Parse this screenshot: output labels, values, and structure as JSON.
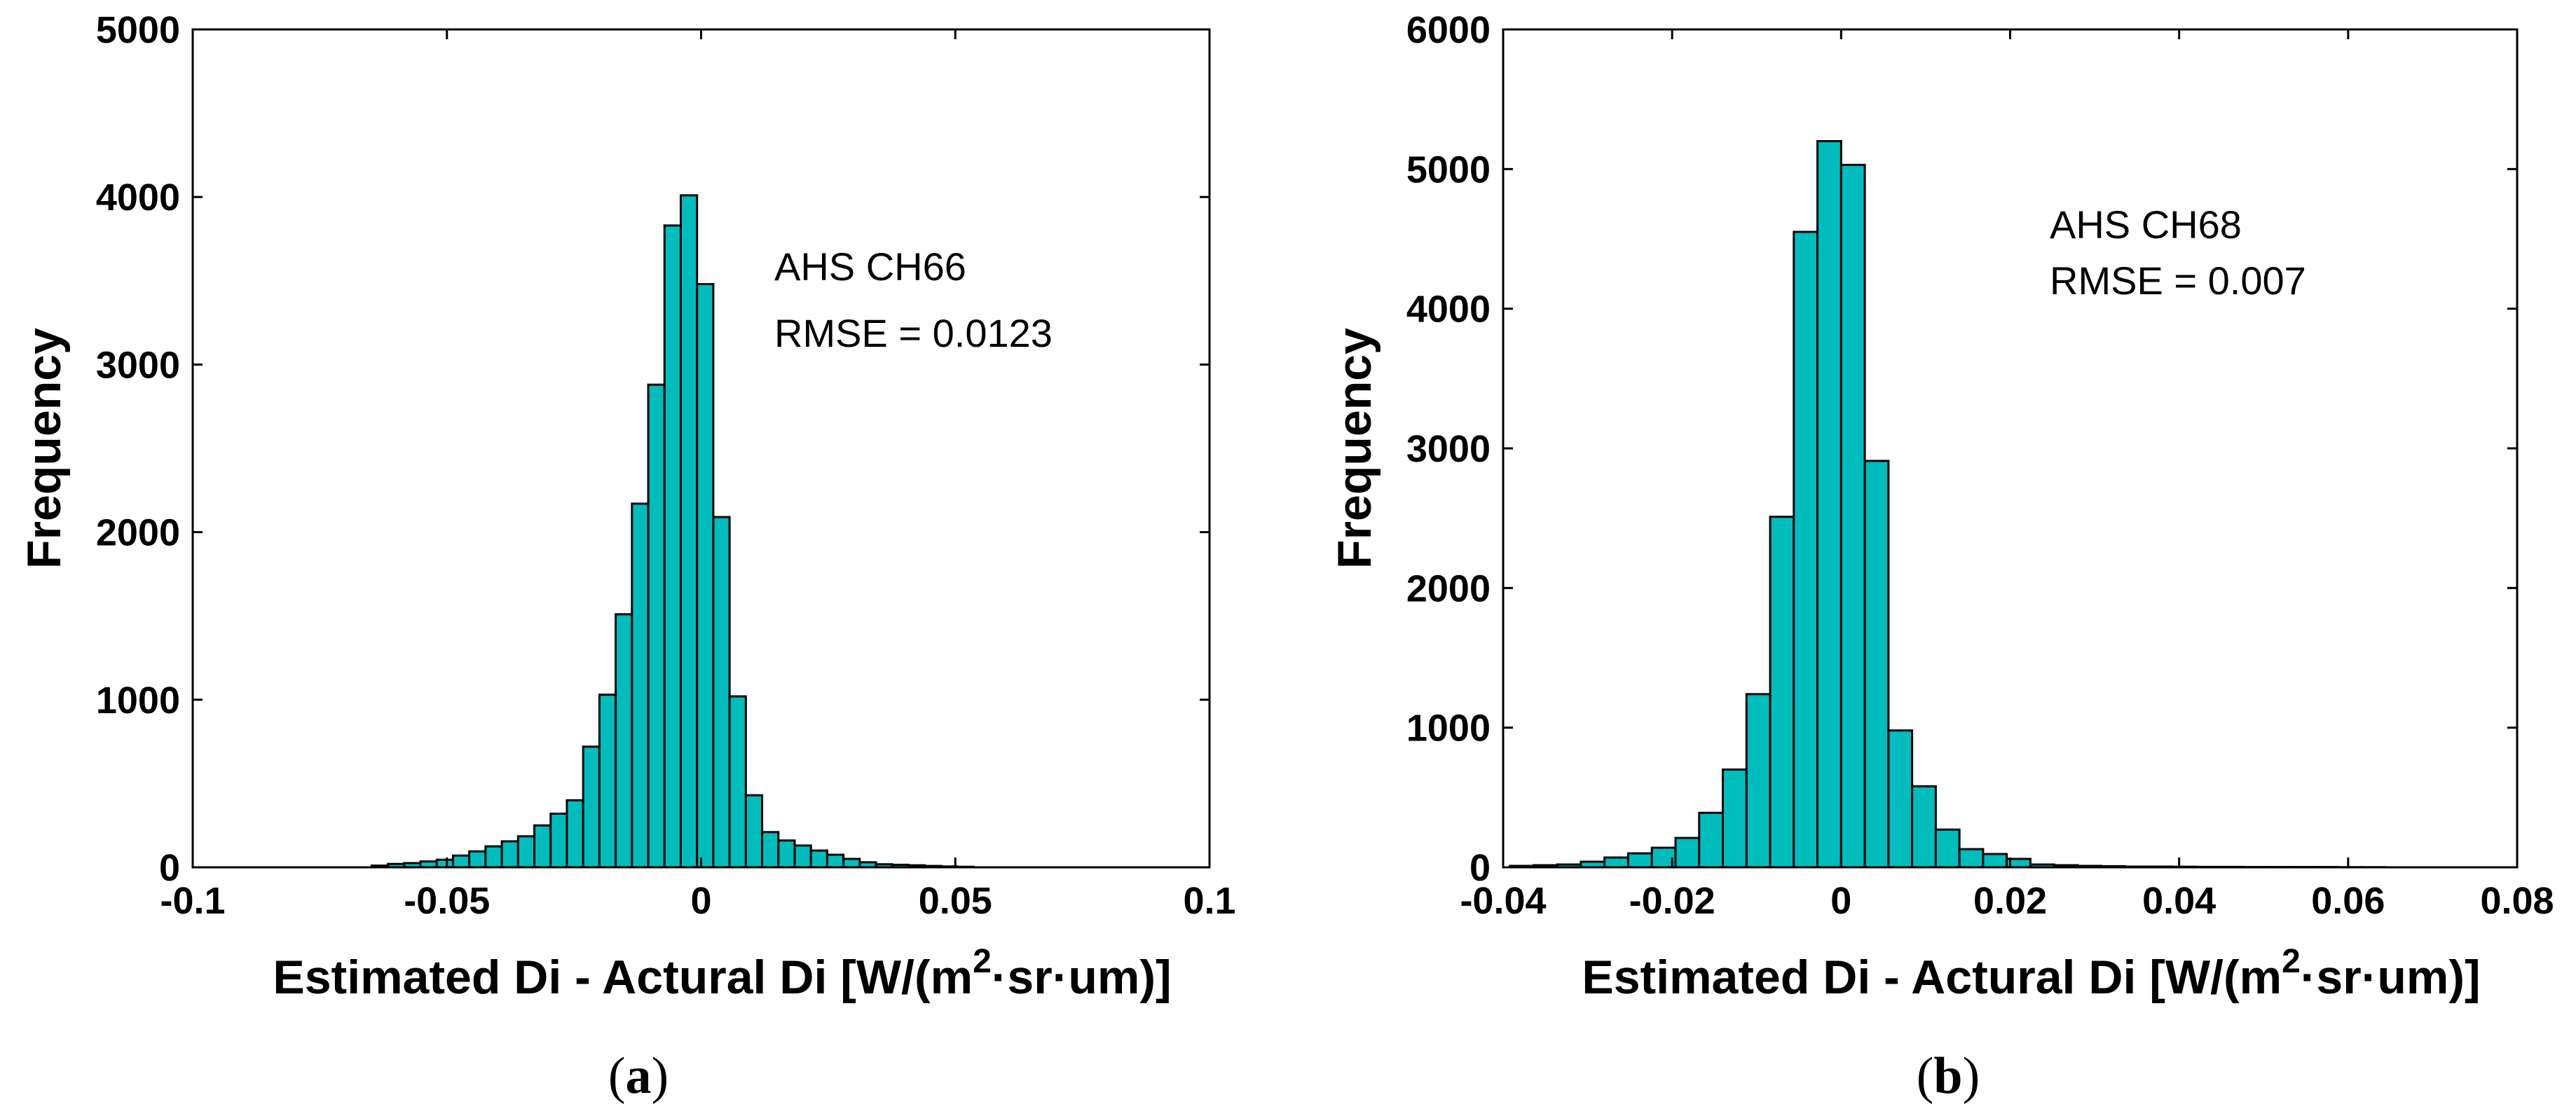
{
  "chart_data": [
    {
      "type": "bar",
      "panel_label": "(a)",
      "annotation": [
        "AHS CH66",
        "RMSE = 0.0123"
      ],
      "xlabel_main": "Estimated Di - Actural Di  [W/(m",
      "xlabel_sup": "2",
      "xlabel_tail": "·sr·um)]",
      "ylabel": "Frequency",
      "xlim": [
        -0.1,
        0.1
      ],
      "ylim": [
        0,
        5000
      ],
      "xticks": [
        -0.1,
        -0.05,
        0,
        0.05,
        0.1
      ],
      "xtick_labels": [
        "-0.1",
        "-0.05",
        "0",
        "0.05",
        "0.1"
      ],
      "yticks": [
        0,
        1000,
        2000,
        3000,
        4000,
        5000
      ],
      "ytick_labels": [
        "0",
        "1000",
        "2000",
        "3000",
        "4000",
        "5000"
      ],
      "bin_width": 0.0032,
      "bin_start": -0.0648,
      "values": [
        10,
        20,
        25,
        35,
        45,
        70,
        95,
        125,
        155,
        185,
        250,
        320,
        400,
        720,
        1030,
        1510,
        2170,
        2880,
        3830,
        4010,
        3480,
        2090,
        1020,
        430,
        210,
        160,
        130,
        100,
        75,
        50,
        30,
        18,
        15,
        12,
        8,
        5,
        3
      ]
    },
    {
      "type": "bar",
      "panel_label": "(b)",
      "annotation": [
        "AHS CH68",
        "RMSE = 0.007"
      ],
      "xlabel_main": "Estimated Di - Actural Di  [W/(m",
      "xlabel_sup": "2",
      "xlabel_tail": "·sr·um)]",
      "ylabel": "Frequency",
      "xlim": [
        -0.04,
        0.08
      ],
      "ylim": [
        0,
        6000
      ],
      "xticks": [
        -0.04,
        -0.02,
        0,
        0.02,
        0.04,
        0.06,
        0.08
      ],
      "xtick_labels": [
        "-0.04",
        "-0.02",
        "0",
        "0.02",
        "0.04",
        "0.06",
        "0.08"
      ],
      "yticks": [
        0,
        1000,
        2000,
        3000,
        4000,
        5000,
        6000
      ],
      "ytick_labels": [
        "0",
        "1000",
        "2000",
        "3000",
        "4000",
        "5000",
        "6000"
      ],
      "bin_width": 0.0028,
      "bin_start": -0.0392,
      "values": [
        10,
        15,
        20,
        40,
        70,
        100,
        140,
        210,
        390,
        700,
        1240,
        2510,
        4550,
        5200,
        5030,
        2910,
        980,
        580,
        270,
        130,
        95,
        60,
        20,
        15,
        10,
        8,
        5,
        5,
        4,
        3,
        3,
        2,
        2,
        2,
        2,
        1,
        1
      ]
    }
  ]
}
